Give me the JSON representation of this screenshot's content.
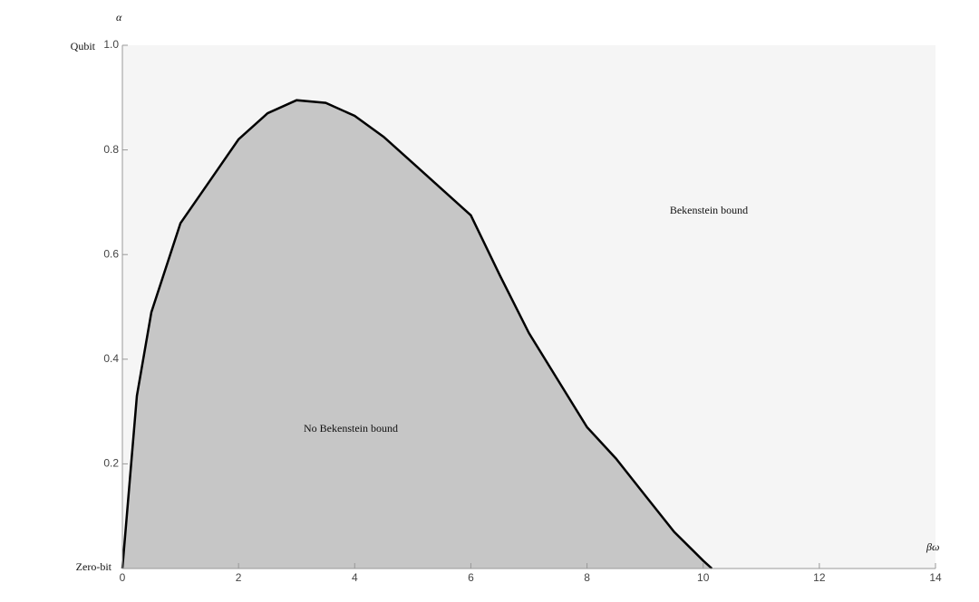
{
  "chart_data": {
    "type": "area",
    "x": [
      0,
      0.25,
      0.5,
      1,
      1.5,
      2,
      2.5,
      3,
      3.5,
      4,
      4.5,
      5,
      5.5,
      6,
      6.5,
      7,
      7.5,
      8,
      8.5,
      9,
      9.5,
      10,
      10.15
    ],
    "values": [
      0,
      0.33,
      0.49,
      0.66,
      0.74,
      0.82,
      0.87,
      0.895,
      0.89,
      0.865,
      0.825,
      0.775,
      0.725,
      0.675,
      0.56,
      0.45,
      0.36,
      0.27,
      0.21,
      0.14,
      0.07,
      0.015,
      0
    ],
    "color": "#c6c6c6",
    "background": "#f5f5f5",
    "xlim": [
      0,
      14
    ],
    "xticks": [
      0,
      2,
      4,
      6,
      8,
      10,
      12,
      14
    ],
    "ylim": [
      0,
      1
    ],
    "yticks": [
      0.2,
      0.4,
      0.6,
      0.8,
      {
        "value": 1,
        "label": "1.0"
      }
    ],
    "xlabel": "βω",
    "ylabel": "α",
    "ytop_label": "Qubit",
    "ybottom_label": "Zero-bit",
    "region_outside": "Bekenstein bound",
    "region_inside": "No Bekenstein bound"
  }
}
